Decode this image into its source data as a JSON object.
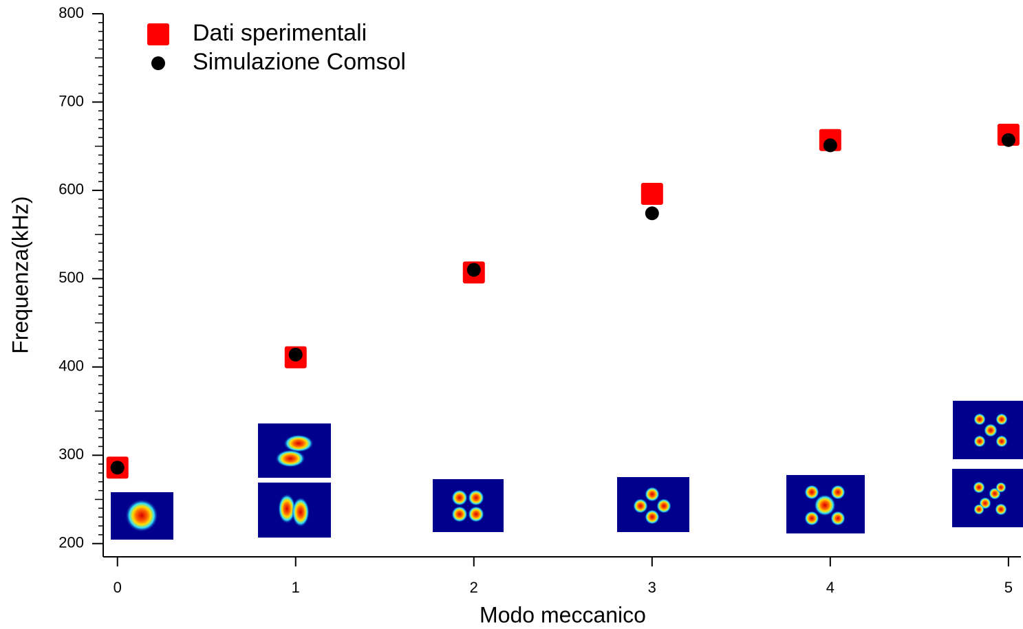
{
  "chart_data": {
    "type": "scatter",
    "x_label": "Modo meccanico",
    "y_label": "Frequenza(kHz)",
    "xlim": [
      -0.08,
      5.07
    ],
    "ylim": [
      185,
      800
    ],
    "xticks": [
      0,
      1,
      2,
      3,
      4,
      5
    ],
    "yticks": [
      200,
      300,
      400,
      500,
      600,
      700,
      800
    ],
    "legend": "upper left",
    "series": [
      {
        "name": "Dati sperimentali",
        "color": "#ff0000",
        "marker": "square",
        "x": [
          0,
          1,
          2,
          3,
          4,
          5
        ],
        "values": [
          286,
          411,
          507,
          596,
          657,
          663
        ]
      },
      {
        "name": "Simulazione Comsol",
        "color": "#000000",
        "marker": "circle",
        "x": [
          0,
          1,
          2,
          3,
          4,
          5
        ],
        "values": [
          286,
          414,
          510,
          574,
          651,
          657
        ]
      }
    ]
  }
}
